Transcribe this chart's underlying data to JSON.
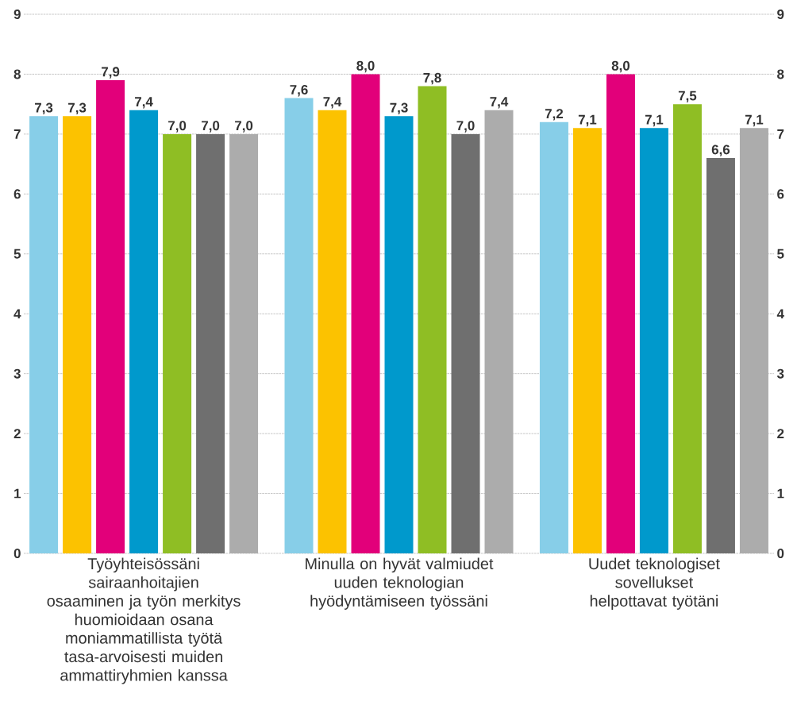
{
  "chart_data": {
    "type": "bar",
    "categories": [
      "Työyhteisössäni sairaanhoitajien osaaminen ja työn merkitys huomioidaan osana moniammatillista työtä tasa-arvoisesti muiden ammattiryhmien kanssa",
      "Minulla on hyvät valmiudet uuden teknologian hyödyntämiseen työssäni",
      "Uudet teknologiset sovellukset helpottavat työtäni"
    ],
    "series": [
      {
        "color": "#87cee8",
        "values": [
          7.3,
          7.6,
          7.2
        ],
        "value_labels": [
          "7,3",
          "7,6",
          "7,2"
        ]
      },
      {
        "color": "#fcc200",
        "values": [
          7.3,
          7.4,
          7.1
        ],
        "value_labels": [
          "7,3",
          "7,4",
          "7,1"
        ]
      },
      {
        "color": "#e2007a",
        "values": [
          7.9,
          8.0,
          8.0
        ],
        "value_labels": [
          "7,9",
          "8,0",
          "8,0"
        ]
      },
      {
        "color": "#0099cc",
        "values": [
          7.4,
          7.3,
          7.1
        ],
        "value_labels": [
          "7,4",
          "7,3",
          "7,1"
        ]
      },
      {
        "color": "#8fbe24",
        "values": [
          7.0,
          7.8,
          7.5
        ],
        "value_labels": [
          "7,0",
          "7,8",
          "7,5"
        ]
      },
      {
        "color": "#6f6f6f",
        "values": [
          7.0,
          7.0,
          6.6
        ],
        "value_labels": [
          "7,0",
          "7,0",
          "6,6"
        ]
      },
      {
        "color": "#acacac",
        "values": [
          7.0,
          7.4,
          7.1
        ],
        "value_labels": [
          "7,0",
          "7,4",
          "7,1"
        ]
      }
    ],
    "ylim": [
      0,
      9
    ],
    "yticks": [
      0,
      1,
      2,
      3,
      4,
      5,
      6,
      7,
      8,
      9
    ],
    "y2lim": [
      0,
      9
    ],
    "y2ticks": [
      0,
      1,
      2,
      3,
      4,
      5,
      6,
      7,
      8,
      9
    ],
    "grid": "y"
  }
}
